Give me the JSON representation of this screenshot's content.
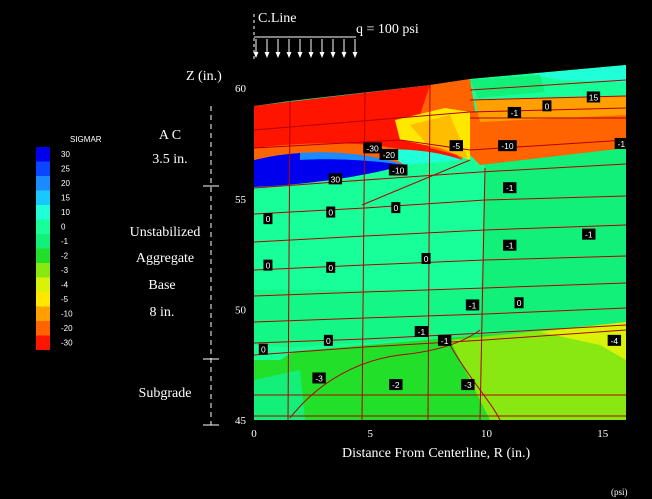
{
  "chart_data": {
    "type": "heatmap",
    "title": "",
    "xlabel": "Distance From Centerline, R (in.)",
    "ylabel": "Z (in.)",
    "xlim": [
      0,
      16
    ],
    "ylim": [
      45,
      61
    ],
    "x_ticks": [
      0,
      5,
      10,
      15
    ],
    "y_ticks": [
      45,
      50,
      55,
      60
    ],
    "units_note": "(psi)",
    "centerline_label": "C.Line",
    "load_label": "q = 100 psi",
    "legend": {
      "title": "SIGMAR",
      "placement": "left",
      "levels": [
        {
          "label": "30",
          "color": "#0000ee"
        },
        {
          "label": "25",
          "color": "#0a46ff"
        },
        {
          "label": "20",
          "color": "#1a8cff"
        },
        {
          "label": "15",
          "color": "#19c8ff"
        },
        {
          "label": "10",
          "color": "#20ffd8"
        },
        {
          "label": "0",
          "color": "#18ff9a"
        },
        {
          "label": "-1",
          "color": "#12f07a"
        },
        {
          "label": "-2",
          "color": "#22e02a"
        },
        {
          "label": "-3",
          "color": "#8ae812"
        },
        {
          "label": "-4",
          "color": "#d8f20a"
        },
        {
          "label": "-5",
          "color": "#ffe800"
        },
        {
          "label": "-10",
          "color": "#ffa000"
        },
        {
          "label": "-20",
          "color": "#ff6400"
        },
        {
          "label": "-30",
          "color": "#ff1400"
        }
      ]
    },
    "layers": [
      {
        "name": "AC",
        "thickness": "3.5 in.",
        "label_lines": [
          "A C",
          "3.5 in."
        ]
      },
      {
        "name": "Unstabilized Aggregate Base",
        "thickness": "8 in.",
        "label_lines": [
          "Unstabilized",
          "Aggregate",
          "Base",
          "8 in."
        ]
      },
      {
        "name": "Subgrade",
        "thickness": "",
        "label_lines": [
          "Subgrade"
        ]
      }
    ],
    "contour_labels": [
      {
        "r": 14.6,
        "z": 59.6,
        "text": "15"
      },
      {
        "r": 11.2,
        "z": 58.9,
        "text": "-1"
      },
      {
        "r": 12.6,
        "z": 59.2,
        "text": "0"
      },
      {
        "r": 15.8,
        "z": 57.5,
        "text": "-1"
      },
      {
        "r": 10.9,
        "z": 57.4,
        "text": "-10"
      },
      {
        "r": 8.7,
        "z": 57.4,
        "text": "-5"
      },
      {
        "r": 5.1,
        "z": 57.3,
        "text": "-30"
      },
      {
        "r": 5.8,
        "z": 57.0,
        "text": "-20"
      },
      {
        "r": 6.2,
        "z": 56.3,
        "text": "-10"
      },
      {
        "r": 3.5,
        "z": 55.9,
        "text": "30"
      },
      {
        "r": 11.0,
        "z": 55.5,
        "text": "-1"
      },
      {
        "r": 6.1,
        "z": 54.6,
        "text": "0"
      },
      {
        "r": 0.6,
        "z": 54.1,
        "text": "0"
      },
      {
        "r": 3.3,
        "z": 54.4,
        "text": "0"
      },
      {
        "r": 14.4,
        "z": 53.4,
        "text": "-1"
      },
      {
        "r": 11.0,
        "z": 52.9,
        "text": "-1"
      },
      {
        "r": 7.4,
        "z": 52.3,
        "text": "0"
      },
      {
        "r": 0.6,
        "z": 52.0,
        "text": "0"
      },
      {
        "r": 3.3,
        "z": 51.9,
        "text": "0"
      },
      {
        "r": 11.4,
        "z": 50.3,
        "text": "0"
      },
      {
        "r": 9.4,
        "z": 50.2,
        "text": "-1"
      },
      {
        "r": 7.2,
        "z": 49.0,
        "text": "-1"
      },
      {
        "r": 8.2,
        "z": 48.6,
        "text": "-1"
      },
      {
        "r": 0.4,
        "z": 48.2,
        "text": "0"
      },
      {
        "r": 3.2,
        "z": 48.6,
        "text": "0"
      },
      {
        "r": 15.5,
        "z": 48.6,
        "text": "-4"
      },
      {
        "r": 2.8,
        "z": 46.9,
        "text": "-3"
      },
      {
        "r": 6.1,
        "z": 46.6,
        "text": "-2"
      },
      {
        "r": 9.2,
        "z": 46.6,
        "text": "-3"
      }
    ]
  }
}
